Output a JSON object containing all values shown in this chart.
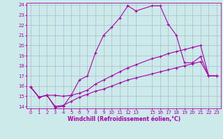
{
  "xlabel": "Windchill (Refroidissement éolien,°C)",
  "background_color": "#cceaea",
  "grid_color": "#aabbcc",
  "line_color": "#aa00aa",
  "xlim": [
    -0.5,
    23.5
  ],
  "ylim": [
    13.8,
    24.2
  ],
  "xticks": [
    0,
    1,
    2,
    3,
    4,
    5,
    6,
    7,
    8,
    9,
    10,
    11,
    12,
    13,
    15,
    16,
    17,
    18,
    19,
    20,
    21,
    22,
    23
  ],
  "yticks": [
    14,
    15,
    16,
    17,
    18,
    19,
    20,
    21,
    22,
    23,
    24
  ],
  "line1_x": [
    0,
    1,
    2,
    3,
    4,
    5,
    6,
    7,
    8,
    9,
    10,
    11,
    12,
    13,
    15,
    16,
    17,
    18,
    19,
    20,
    21,
    22,
    23
  ],
  "line1_y": [
    15.9,
    14.9,
    15.1,
    13.9,
    14.0,
    15.1,
    16.6,
    17.0,
    19.3,
    21.0,
    21.8,
    22.7,
    23.9,
    23.4,
    23.9,
    23.9,
    22.1,
    21.0,
    18.3,
    18.3,
    18.9,
    17.0,
    17.0
  ],
  "line2_x": [
    0,
    1,
    2,
    3,
    4,
    5,
    6,
    7,
    8,
    9,
    10,
    11,
    12,
    13,
    15,
    16,
    17,
    18,
    19,
    20,
    21,
    22,
    23
  ],
  "line2_y": [
    15.9,
    14.9,
    15.1,
    15.1,
    15.0,
    15.1,
    15.3,
    15.6,
    16.2,
    16.6,
    17.0,
    17.4,
    17.8,
    18.1,
    18.7,
    18.9,
    19.2,
    19.4,
    19.6,
    19.8,
    20.0,
    17.0,
    17.0
  ],
  "line3_x": [
    0,
    1,
    2,
    3,
    4,
    5,
    6,
    7,
    8,
    9,
    10,
    11,
    12,
    13,
    15,
    16,
    17,
    18,
    19,
    20,
    21,
    22,
    23
  ],
  "line3_y": [
    15.9,
    14.9,
    15.1,
    14.0,
    14.1,
    14.5,
    14.9,
    15.2,
    15.5,
    15.7,
    16.0,
    16.3,
    16.6,
    16.8,
    17.2,
    17.4,
    17.6,
    17.8,
    18.0,
    18.2,
    18.4,
    17.0,
    17.0
  ],
  "tick_fontsize": 5.0,
  "xlabel_fontsize": 5.5,
  "marker": "+"
}
